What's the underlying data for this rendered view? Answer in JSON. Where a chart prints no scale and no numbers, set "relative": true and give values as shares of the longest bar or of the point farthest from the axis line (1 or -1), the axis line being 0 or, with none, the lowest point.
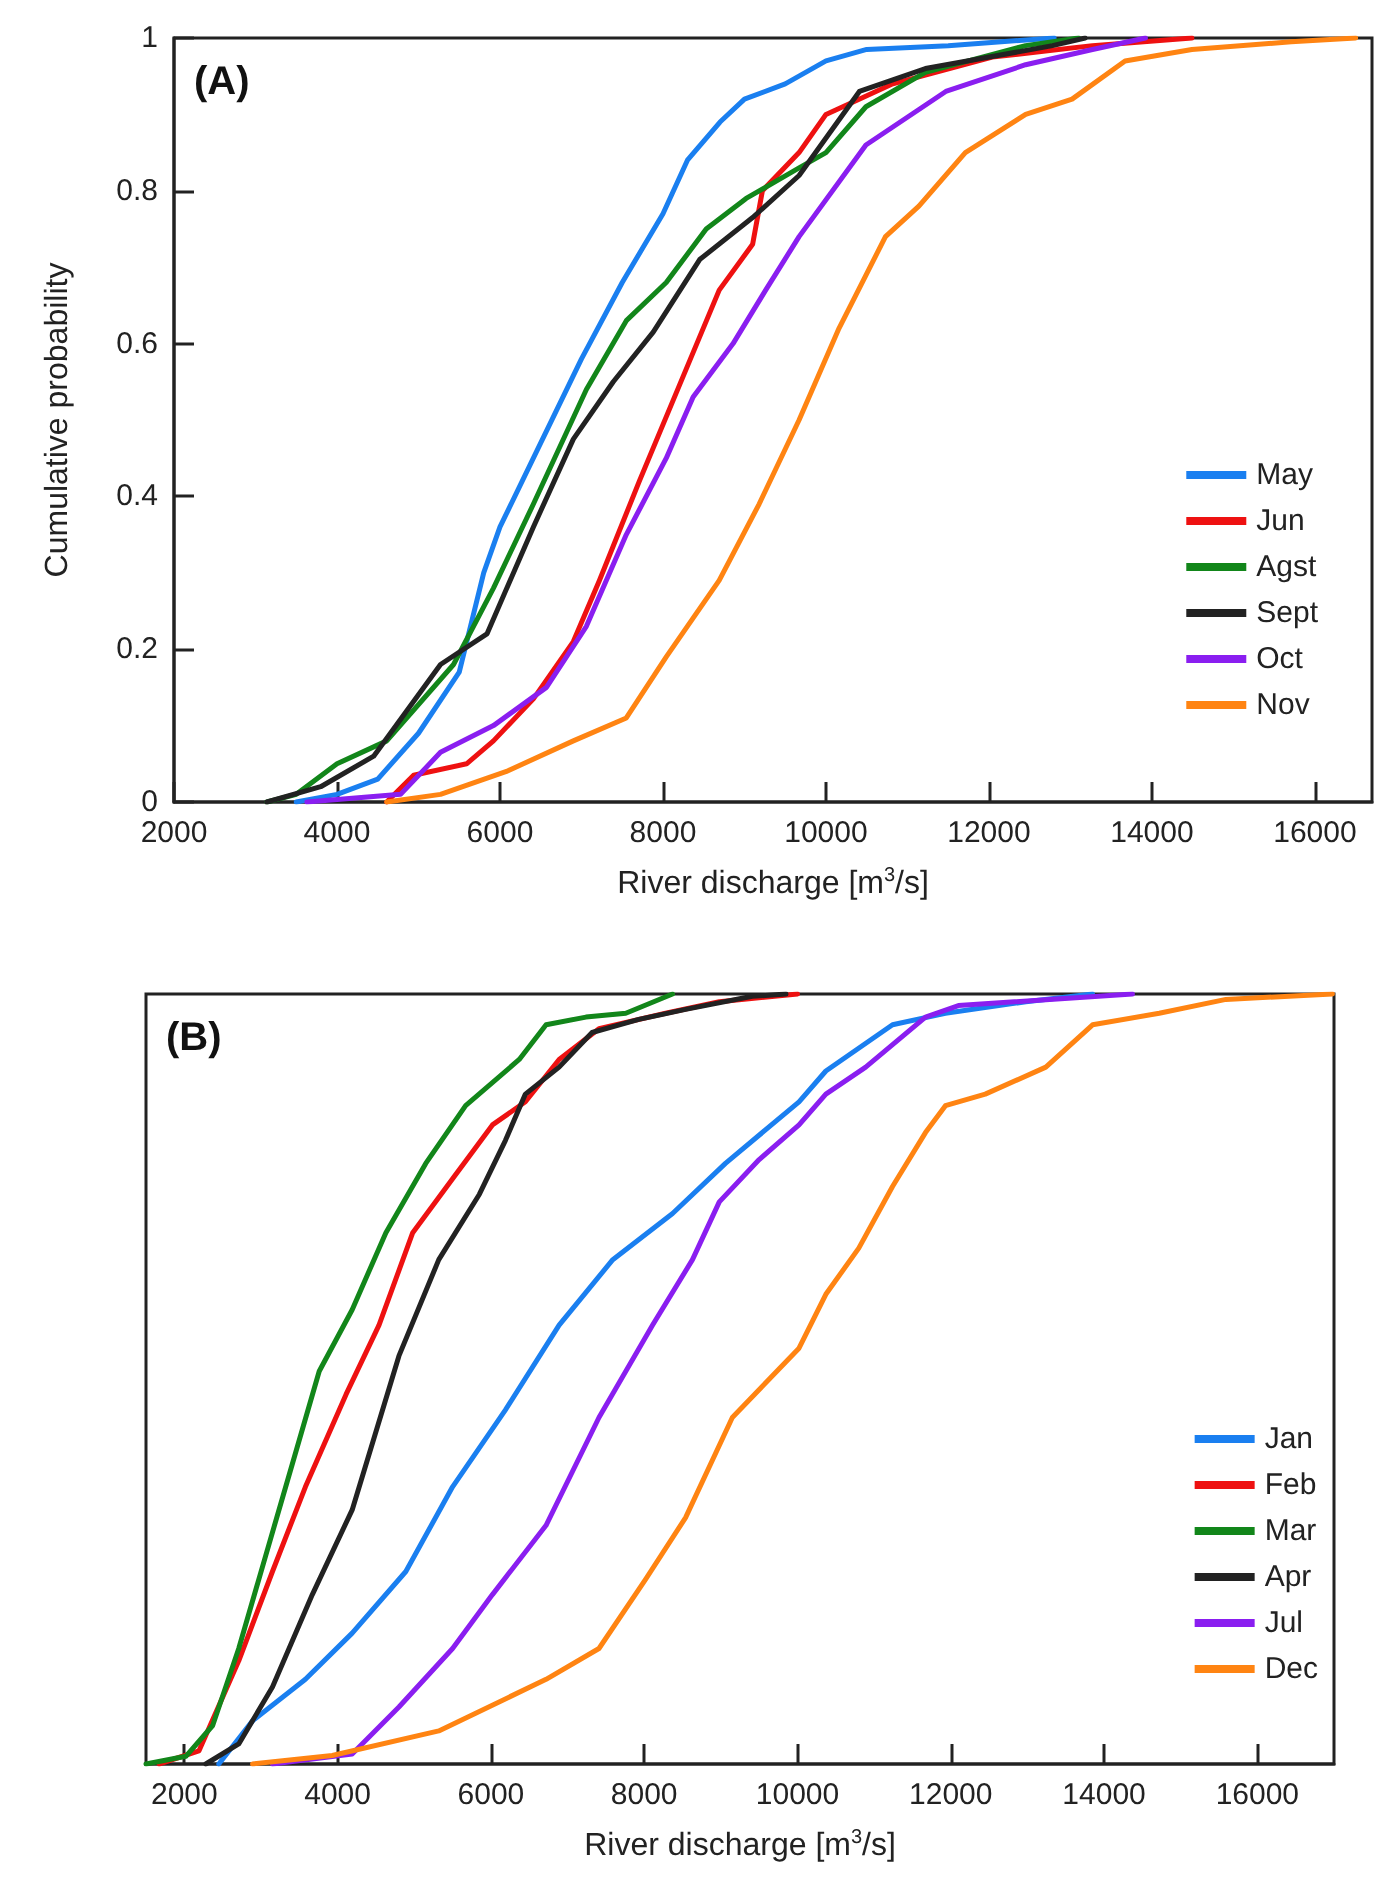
{
  "chart_data": [
    {
      "type": "line",
      "xlabel": "River discharge [m$^{3}$/s]",
      "ylabel": "Cumulative probability",
      "annotations": [
        "(A)"
      ],
      "xlim": [
        2000,
        16700
      ],
      "xticks": [
        2000,
        4000,
        6000,
        8000,
        10000,
        12000,
        14000,
        16000
      ],
      "ylim": [
        0,
        1
      ],
      "yticks": [
        0,
        0.2,
        0.4,
        0.6,
        0.8,
        1
      ],
      "legend": "bottom right",
      "marker": "none",
      "line_style": "solid",
      "grid": false,
      "series": [
        {
          "name": "May",
          "color": "#1a7ff0",
          "x": [
            3500,
            4000,
            4500,
            5000,
            5500,
            5800,
            6000,
            6500,
            7000,
            7500,
            8000,
            8300,
            8700,
            9000,
            9500,
            10000,
            10500,
            11500,
            12800
          ],
          "values": [
            0,
            0.01,
            0.03,
            0.09,
            0.17,
            0.3,
            0.36,
            0.47,
            0.58,
            0.68,
            0.77,
            0.84,
            0.89,
            0.92,
            0.94,
            0.97,
            0.985,
            0.99,
            1
          ]
        },
        {
          "name": "Jun",
          "color": "#ee1111",
          "x": [
            4610,
            4940,
            5590,
            5920,
            6410,
            6900,
            7220,
            7710,
            8200,
            8690,
            9100,
            9220,
            9670,
            10000,
            10820,
            12040,
            13270,
            14490
          ],
          "values": [
            0,
            0.035,
            0.05,
            0.08,
            0.135,
            0.21,
            0.29,
            0.42,
            0.545,
            0.67,
            0.73,
            0.8,
            0.85,
            0.9,
            0.94,
            0.975,
            0.99,
            1
          ]
        },
        {
          "name": "Agst",
          "color": "#12861a",
          "x": [
            3140,
            3500,
            4000,
            4610,
            5430,
            5920,
            6410,
            7060,
            7550,
            8040,
            8530,
            9020,
            9670,
            10000,
            10490,
            11220,
            12450,
            13100
          ],
          "values": [
            0,
            0.01,
            0.05,
            0.08,
            0.18,
            0.28,
            0.39,
            0.54,
            0.63,
            0.68,
            0.75,
            0.79,
            0.83,
            0.85,
            0.91,
            0.955,
            0.99,
            1
          ]
        },
        {
          "name": "Sept",
          "color": "#222222",
          "x": [
            3140,
            3800,
            4450,
            5270,
            5840,
            6410,
            6900,
            7390,
            7880,
            8450,
            9100,
            9670,
            10410,
            11220,
            12780,
            13180
          ],
          "values": [
            0,
            0.02,
            0.06,
            0.18,
            0.22,
            0.36,
            0.475,
            0.55,
            0.615,
            0.71,
            0.765,
            0.82,
            0.93,
            0.96,
            0.99,
            1
          ]
        },
        {
          "name": "Oct",
          "color": "#8a1ef0",
          "x": [
            3630,
            4780,
            5270,
            5920,
            6570,
            7060,
            7550,
            8040,
            8370,
            8860,
            9260,
            9670,
            10490,
            11470,
            12450,
            13270,
            13920
          ],
          "values": [
            0,
            0.01,
            0.065,
            0.1,
            0.15,
            0.23,
            0.35,
            0.45,
            0.53,
            0.6,
            0.67,
            0.74,
            0.86,
            0.93,
            0.965,
            0.985,
            1
          ]
        },
        {
          "name": "Nov",
          "color": "#ff8412",
          "x": [
            4610,
            5270,
            6080,
            6900,
            7550,
            8040,
            8690,
            9180,
            9670,
            10160,
            10730,
            11140,
            11710,
            12450,
            13020,
            13670,
            14490,
            15710,
            16500
          ],
          "values": [
            0,
            0.01,
            0.04,
            0.08,
            0.11,
            0.19,
            0.29,
            0.39,
            0.5,
            0.62,
            0.74,
            0.78,
            0.85,
            0.9,
            0.92,
            0.97,
            0.985,
            0.995,
            1
          ]
        }
      ]
    },
    {
      "type": "line",
      "xlabel": "River discharge [m$^{3}$/s]",
      "annotations": [
        "(B)"
      ],
      "xlim": [
        1500,
        17000
      ],
      "xticks": [
        2000,
        4000,
        6000,
        8000,
        10000,
        12000,
        14000,
        16000
      ],
      "relative": true,
      "legend": "bottom right",
      "marker": "none",
      "line_style": "solid",
      "grid": false,
      "series": [
        {
          "name": "Jan",
          "color": "#1a7ff0",
          "x": [
            2450,
            2890,
            3580,
            4190,
            4890,
            5500,
            6190,
            6890,
            7590,
            8370,
            9060,
            10020,
            10370,
            11240,
            11930,
            12980,
            13850
          ],
          "values": [
            0,
            0.056,
            0.11,
            0.17,
            0.25,
            0.36,
            0.46,
            0.57,
            0.655,
            0.715,
            0.78,
            0.86,
            0.9,
            0.96,
            0.975,
            0.99,
            1
          ]
        },
        {
          "name": "Feb",
          "color": "#ee1111",
          "x": [
            1670,
            2190,
            2710,
            3150,
            3580,
            4110,
            4540,
            4980,
            5500,
            6020,
            6450,
            6890,
            7410,
            8280,
            8980,
            10000
          ],
          "values": [
            0,
            0.017,
            0.134,
            0.25,
            0.36,
            0.48,
            0.57,
            0.69,
            0.76,
            0.83,
            0.86,
            0.915,
            0.955,
            0.975,
            0.99,
            1
          ]
        },
        {
          "name": "Mar",
          "color": "#12861a",
          "x": [
            1500,
            2020,
            2370,
            2710,
            3060,
            3410,
            3760,
            4190,
            4630,
            5150,
            5670,
            6370,
            6720,
            7240,
            7760,
            8370
          ],
          "values": [
            0,
            0.01,
            0.05,
            0.15,
            0.27,
            0.39,
            0.51,
            0.59,
            0.69,
            0.78,
            0.855,
            0.915,
            0.96,
            0.97,
            0.975,
            1
          ]
        },
        {
          "name": "Apr",
          "color": "#222222",
          "x": [
            2280,
            2710,
            3150,
            3670,
            4190,
            4800,
            5320,
            5850,
            6190,
            6450,
            6890,
            7320,
            7930,
            8540,
            9410,
            9850
          ],
          "values": [
            0,
            0.026,
            0.1,
            0.22,
            0.33,
            0.53,
            0.655,
            0.74,
            0.81,
            0.87,
            0.905,
            0.95,
            0.967,
            0.98,
            0.997,
            1
          ]
        },
        {
          "name": "Jul",
          "color": "#8a1ef0",
          "x": [
            3150,
            4190,
            4800,
            5500,
            6020,
            6720,
            7410,
            8110,
            8630,
            8980,
            9500,
            10020,
            10370,
            10890,
            11670,
            12100,
            14370
          ],
          "values": [
            0,
            0.013,
            0.074,
            0.15,
            0.22,
            0.31,
            0.45,
            0.57,
            0.655,
            0.73,
            0.785,
            0.83,
            0.87,
            0.905,
            0.97,
            0.985,
            1
          ]
        },
        {
          "name": "Dec",
          "color": "#ff8412",
          "x": [
            2890,
            3930,
            5320,
            6720,
            7410,
            8020,
            8540,
            9150,
            10020,
            10370,
            10800,
            11240,
            11670,
            11930,
            12450,
            13240,
            13850,
            14720,
            15590,
            16980
          ],
          "values": [
            0,
            0.011,
            0.043,
            0.11,
            0.15,
            0.24,
            0.32,
            0.45,
            0.54,
            0.61,
            0.67,
            0.75,
            0.82,
            0.855,
            0.87,
            0.905,
            0.96,
            0.975,
            0.993,
            1
          ]
        }
      ]
    }
  ]
}
